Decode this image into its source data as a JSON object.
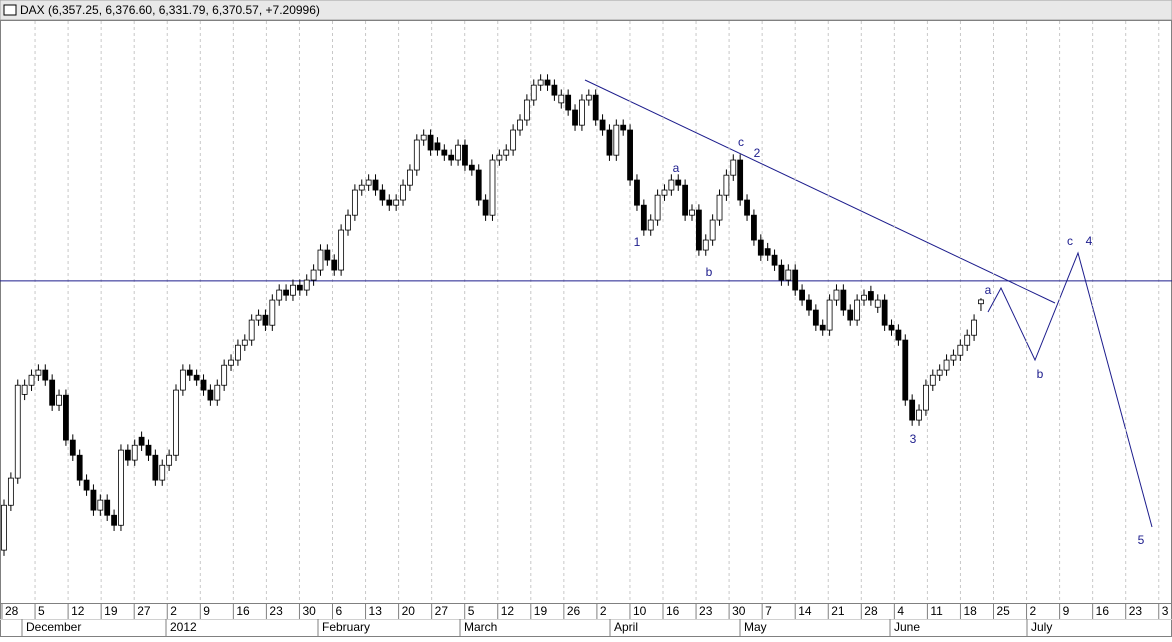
{
  "chart_data": {
    "type": "candlestick",
    "title": "DAX (6,357.25, 6,376.60, 6,331.79, 6,370.57, +7.20996)",
    "ylim": [
      5310,
      7350
    ],
    "grid": true,
    "up_color": "#ffffff",
    "down_color": "#000000",
    "line_color": "#1c1c8c",
    "level": 6437,
    "x_labels": [
      28,
      5,
      12,
      19,
      27,
      2,
      9,
      16,
      23,
      30,
      6,
      13,
      20,
      27,
      5,
      12,
      19,
      26,
      2,
      10,
      16,
      23,
      30,
      7,
      14,
      21,
      28,
      4,
      11,
      18,
      25,
      2,
      9,
      16,
      23,
      3
    ],
    "months": [
      "December",
      "2012",
      "February",
      "March",
      "April",
      "May",
      "June",
      "July"
    ],
    "annotations": [
      "1",
      "a",
      "b",
      "c",
      "2",
      "3",
      "a",
      "b",
      "c",
      "4",
      "5"
    ],
    "open": [
      5495,
      5652,
      5747,
      6040,
      6072,
      6107,
      6125,
      6090,
      6002,
      6037,
      5880,
      5827,
      5740,
      5705,
      5635,
      5670,
      5617,
      5582,
      5845,
      5810,
      5890,
      5862,
      5827,
      5740,
      5792,
      5827,
      6055,
      6125,
      6107,
      6090,
      6055,
      6020,
      6072,
      6142,
      6160,
      6212,
      6230,
      6300,
      6317,
      6282,
      6370,
      6405,
      6387,
      6422,
      6405,
      6440,
      6475,
      6545,
      6510,
      6475,
      6615,
      6667,
      6755,
      6772,
      6790,
      6755,
      6720,
      6702,
      6720,
      6772,
      6825,
      6930,
      6947,
      6920,
      6895,
      6877,
      6860,
      6912,
      6842,
      6825,
      6720,
      6667,
      6860,
      6877,
      6895,
      6965,
      7000,
      7070,
      7122,
      7140,
      7122,
      7060,
      7087,
      7035,
      6982,
      7070,
      7087,
      7000,
      6965,
      6877,
      6982,
      6965,
      6790,
      6702,
      6615,
      6650,
      6737,
      6755,
      6790,
      6772,
      6667,
      6685,
      6545,
      6580,
      6650,
      6737,
      6807,
      6860,
      6720,
      6667,
      6580,
      6550,
      6527,
      6492,
      6440,
      6475,
      6405,
      6370,
      6335,
      6282,
      6265,
      6370,
      6405,
      6335,
      6300,
      6370,
      6400,
      6345,
      6370,
      6282,
      6265,
      6230,
      6020,
      5950,
      5985,
      6072,
      6107,
      6125,
      6160,
      6177,
      6212,
      6247,
      6357.25
    ],
    "high": [
      5672,
      5767,
      6092,
      6092,
      6127,
      6145,
      6145,
      6110,
      6057,
      6057,
      5900,
      5847,
      5760,
      5725,
      5690,
      5690,
      5637,
      5865,
      5865,
      5882,
      5910,
      5882,
      5847,
      5812,
      5847,
      6075,
      6145,
      6145,
      6127,
      6110,
      6075,
      6092,
      6162,
      6180,
      6232,
      6250,
      6320,
      6337,
      6337,
      6390,
      6425,
      6425,
      6442,
      6442,
      6460,
      6495,
      6565,
      6565,
      6530,
      6635,
      6687,
      6775,
      6792,
      6810,
      6810,
      6775,
      6740,
      6740,
      6792,
      6845,
      6950,
      6967,
      6967,
      6940,
      6915,
      6897,
      6932,
      6932,
      6862,
      6845,
      6740,
      6880,
      6897,
      6915,
      6985,
      7020,
      7090,
      7142,
      7160,
      7160,
      7142,
      7107,
      7107,
      7055,
      7090,
      7107,
      7107,
      7020,
      6985,
      7002,
      7002,
      6985,
      6810,
      6722,
      6670,
      6757,
      6775,
      6810,
      6810,
      6792,
      6705,
      6705,
      6600,
      6670,
      6757,
      6827,
      6880,
      6880,
      6740,
      6687,
      6600,
      6570,
      6547,
      6512,
      6495,
      6495,
      6425,
      6390,
      6355,
      6302,
      6390,
      6425,
      6425,
      6355,
      6390,
      6407,
      6420,
      6390,
      6390,
      6302,
      6285,
      6250,
      6040,
      6005,
      6092,
      6127,
      6145,
      6180,
      6197,
      6232,
      6267,
      6320,
      6376.6
    ],
    "low": [
      5475,
      5632,
      5727,
      6020,
      6052,
      6087,
      6070,
      5982,
      5982,
      5860,
      5807,
      5720,
      5685,
      5615,
      5615,
      5597,
      5562,
      5562,
      5790,
      5790,
      5842,
      5807,
      5720,
      5720,
      5772,
      5807,
      6035,
      6087,
      6070,
      6035,
      6000,
      6000,
      6052,
      6122,
      6140,
      6192,
      6210,
      6280,
      6262,
      6262,
      6350,
      6367,
      6367,
      6385,
      6385,
      6420,
      6455,
      6490,
      6455,
      6455,
      6595,
      6647,
      6735,
      6752,
      6735,
      6700,
      6682,
      6682,
      6700,
      6752,
      6805,
      6910,
      6875,
      6875,
      6857,
      6840,
      6840,
      6822,
      6805,
      6700,
      6647,
      6647,
      6840,
      6857,
      6875,
      6945,
      6980,
      7050,
      7102,
      7102,
      7067,
      7040,
      7015,
      6962,
      6962,
      7050,
      6980,
      6945,
      6857,
      6857,
      6945,
      6770,
      6682,
      6595,
      6595,
      6630,
      6717,
      6735,
      6752,
      6647,
      6647,
      6525,
      6525,
      6560,
      6630,
      6717,
      6787,
      6700,
      6647,
      6560,
      6507,
      6507,
      6472,
      6420,
      6420,
      6385,
      6350,
      6315,
      6262,
      6245,
      6245,
      6350,
      6315,
      6280,
      6280,
      6350,
      6350,
      6325,
      6262,
      6245,
      6210,
      6000,
      5930,
      5930,
      5965,
      6052,
      6087,
      6105,
      6140,
      6157,
      6192,
      6227,
      6331.79
    ],
    "close": [
      5652,
      5747,
      6072,
      6072,
      6107,
      6125,
      6090,
      6002,
      6037,
      5880,
      5827,
      5740,
      5705,
      5635,
      5670,
      5617,
      5582,
      5845,
      5810,
      5862,
      5862,
      5827,
      5740,
      5792,
      5827,
      6055,
      6125,
      6107,
      6090,
      6055,
      6020,
      6072,
      6142,
      6160,
      6212,
      6230,
      6300,
      6317,
      6282,
      6370,
      6405,
      6387,
      6422,
      6405,
      6440,
      6475,
      6545,
      6510,
      6475,
      6615,
      6667,
      6755,
      6772,
      6790,
      6755,
      6720,
      6702,
      6720,
      6772,
      6825,
      6930,
      6947,
      6895,
      6895,
      6877,
      6860,
      6912,
      6842,
      6825,
      6720,
      6667,
      6860,
      6877,
      6895,
      6965,
      7000,
      7070,
      7122,
      7140,
      7122,
      7087,
      7087,
      7035,
      6982,
      7070,
      7087,
      7000,
      6965,
      6877,
      6982,
      6965,
      6790,
      6702,
      6615,
      6650,
      6737,
      6755,
      6790,
      6772,
      6667,
      6685,
      6545,
      6580,
      6650,
      6737,
      6807,
      6860,
      6720,
      6667,
      6580,
      6527,
      6527,
      6492,
      6440,
      6475,
      6405,
      6370,
      6335,
      6282,
      6265,
      6370,
      6405,
      6335,
      6300,
      6370,
      6387,
      6370,
      6370,
      6282,
      6265,
      6230,
      6020,
      5950,
      5985,
      6072,
      6107,
      6125,
      6160,
      6177,
      6212,
      6247,
      6300,
      6370.57
    ]
  }
}
